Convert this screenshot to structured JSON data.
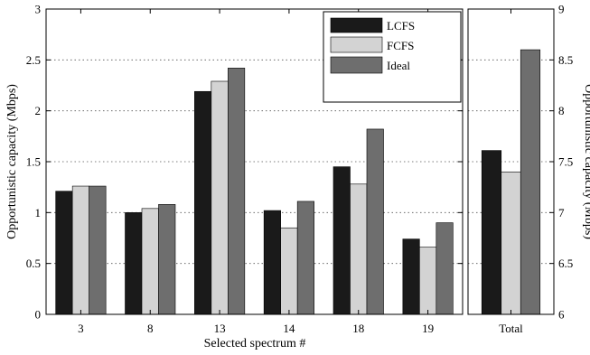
{
  "chart_data": [
    {
      "type": "bar",
      "xlabel": "Selected spectrum #",
      "ylabel": "Opportunistic capacity (Mbps)",
      "ylim": [
        0,
        3
      ],
      "yticks": [
        0,
        0.5,
        1,
        1.5,
        2,
        2.5,
        3
      ],
      "ytick_labels": [
        "0",
        "0.5",
        "1",
        "1.5",
        "2",
        "2.5",
        "3"
      ],
      "grid": "horizontal dotted",
      "legend_position": "top-right",
      "categories": [
        "3",
        "8",
        "13",
        "14",
        "18",
        "19"
      ],
      "series": [
        {
          "name": "LCFS",
          "color": "#1a1a1a",
          "values": [
            1.21,
            1.0,
            2.19,
            1.02,
            1.45,
            0.74
          ]
        },
        {
          "name": "FCFS",
          "color": "#d3d3d3",
          "values": [
            1.26,
            1.04,
            2.29,
            0.85,
            1.28,
            0.66
          ]
        },
        {
          "name": "Ideal",
          "color": "#6e6e6e",
          "values": [
            1.26,
            1.08,
            2.42,
            1.11,
            1.82,
            0.9
          ]
        }
      ]
    },
    {
      "type": "bar",
      "ylabel": "Opportunistic capacity (Mbps)",
      "ylim": [
        6,
        9
      ],
      "yticks": [
        6,
        6.5,
        7,
        7.5,
        8,
        8.5,
        9
      ],
      "ytick_labels": [
        "6",
        "6.5",
        "7",
        "7.5",
        "8",
        "8.5",
        "9"
      ],
      "yaxis_side": "right",
      "grid": "horizontal dotted",
      "categories": [
        "Total"
      ],
      "series": [
        {
          "name": "LCFS",
          "color": "#1a1a1a",
          "values": [
            7.61
          ]
        },
        {
          "name": "FCFS",
          "color": "#d3d3d3",
          "values": [
            7.4
          ]
        },
        {
          "name": "Ideal",
          "color": "#6e6e6e",
          "values": [
            8.6
          ]
        }
      ]
    }
  ]
}
